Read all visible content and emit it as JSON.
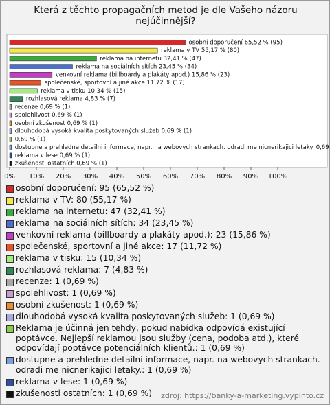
{
  "chart_data": {
    "type": "barh",
    "title": "Která z těchto propagačních metod je dle Vašeho názoru nejúčinnější?",
    "categories": [
      "osobní doporučení",
      "reklama v TV",
      "reklama na internetu",
      "reklama na sociálních sítích",
      "venkovní reklama (billboardy a plakáty apod.)",
      "společenské, sportovní a jiné akce",
      "reklama v tisku",
      "rozhlasová reklama",
      "recenze",
      "spolehlivost",
      "osobní zkušenost",
      "dlouhodobá vysoká kvalita poskytovaných služeb",
      null,
      "dostupne a prehledne detailni informace, napr. na webovych strankach. odradi me nicnerikajici letaky.",
      "reklama v lese",
      "zkušenosti ostatních"
    ],
    "values": [
      65.52,
      55.17,
      32.41,
      23.45,
      15.86,
      11.72,
      10.34,
      4.83,
      0.69,
      0.69,
      0.69,
      0.69,
      0.69,
      0.69,
      0.69,
      0.69
    ],
    "value_labels": [
      "osobní doporučení 65,52 % (95)",
      "reklama v TV 55,17 % (80)",
      "reklama na internetu 32,41 % (47)",
      "reklama na sociálních sítích 23,45 % (34)",
      "venkovní reklama (billboardy a plakáty apod.) 15,86 % (23)",
      "společenské, sportovní a jiné akce 11,72 % (17)",
      "reklama v tisku 10,34 % (15)",
      "rozhlasová reklama 4,83 % (7)",
      "recenze 0,69 % (1)",
      "spolehlivost 0,69 % (1)",
      "osobní zkušenost 0,69 % (1)",
      "dlouhodobá vysoká kvalita poskytovaných služeb 0,69 % (1)",
      "0,69 % (1)",
      "dostupne a prehledne detailni informace, napr. na webovych strankach. odradi me nicnerikajici letaky. 0,69 % (1)",
      "reklama v lese 0,69 % (1)",
      "zkušenosti ostatních 0,69 % (1)"
    ],
    "legend_labels": [
      "osobní doporučení: 95 (65,52 %)",
      "reklama v TV: 80 (55,17 %)",
      "reklama na internetu: 47 (32,41 %)",
      "reklama na sociálních sítích: 34 (23,45 %)",
      "venkovní reklama (billboardy a plakáty apod.): 23 (15,86 %)",
      "společenské, sportovní a jiné akce: 17 (11,72 %)",
      "reklama v tisku: 15 (10,34 %)",
      "rozhlasová reklama: 7 (4,83 %)",
      "recenze: 1 (0,69 %)",
      "spolehlivost: 1 (0,69 %)",
      "osobní zkušenost: 1 (0,69 %)",
      "dlouhodobá vysoká kvalita poskytovaných služeb: 1 (0,69 %)",
      "Reklama je účinná jen tehdy, pokud nabídka odpovídá existující poptávce. Nejlepší reklamou jsou služby (cena, podoba atd.), které odpovídají poptávce potenciálních klientů.: 1 (0,69 %)",
      "dostupne a prehledne detailni informace, napr. na webovych strankach. odradi me nicnerikajici letaky.: 1 (0,69 %)",
      "reklama v lese: 1 (0,69 %)",
      "zkušenosti ostatních: 1 (0,69 %)"
    ],
    "colors": [
      "#d42a2a",
      "#f4e84a",
      "#3fa83f",
      "#4a6fd0",
      "#c83ac8",
      "#e8532a",
      "#a5ec80",
      "#2f8a55",
      "#a8a8a8",
      "#c99ad0",
      "#ee8a30",
      "#a9a9dc",
      "#8ccc48",
      "#7a9ee0",
      "#3050a8",
      "#111111"
    ],
    "xlim": [
      0,
      100
    ],
    "xticks": [
      {
        "value": 0,
        "label": "0%"
      },
      {
        "value": 10,
        "label": "10%"
      },
      {
        "value": 20,
        "label": "20%"
      },
      {
        "value": 30,
        "label": "30%"
      },
      {
        "value": 40,
        "label": "40%"
      },
      {
        "value": 50,
        "label": "50%"
      },
      {
        "value": 60,
        "label": "60%"
      },
      {
        "value": 70,
        "label": "70%"
      },
      {
        "value": 80,
        "label": "80%"
      },
      {
        "value": 90,
        "label": "90%"
      },
      {
        "value": 100,
        "label": "100%"
      }
    ],
    "source": "zdroj: https://banky-a-marketing.vyplnto.cz"
  }
}
